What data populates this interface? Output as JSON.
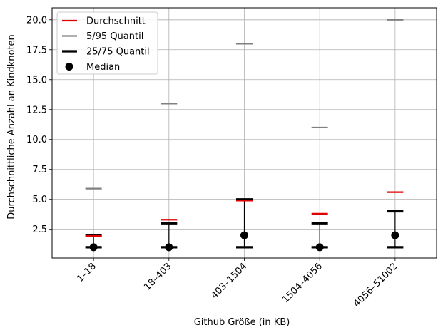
{
  "chart_data": {
    "type": "boxplot-summary",
    "xlabel": "Github Größe (in KB)",
    "ylabel": "Durchschnittliche Anzahl an Kindknoten",
    "ylim": [
      0.1,
      21.0
    ],
    "yticks": [
      2.5,
      5.0,
      7.5,
      10.0,
      12.5,
      15.0,
      17.5,
      20.0
    ],
    "ytick_labels": [
      "2.5",
      "5.0",
      "7.5",
      "10.0",
      "12.5",
      "15.0",
      "17.5",
      "20.0"
    ],
    "grid": true,
    "legend_position": "top-left",
    "categories": [
      "1–18",
      "18–403",
      "403–1504",
      "1504–4056",
      "4056–51002"
    ],
    "series": [
      {
        "name": "Durchschnitt",
        "color": "#e00000",
        "values": [
          1.95,
          3.3,
          4.9,
          3.8,
          5.6
        ]
      },
      {
        "name": "5/95 Quantil",
        "color": "#808080",
        "low": [
          1.0,
          1.0,
          1.0,
          1.0,
          1.0
        ],
        "high": [
          5.9,
          13.0,
          18.0,
          11.0,
          20.0
        ]
      },
      {
        "name": "25/75 Quantil",
        "color": "#000000",
        "low": [
          1.0,
          1.0,
          1.0,
          1.0,
          1.0
        ],
        "high": [
          2.0,
          3.0,
          5.0,
          3.0,
          4.0
        ]
      },
      {
        "name": "Median",
        "color": "#000000",
        "values": [
          1.0,
          1.0,
          2.0,
          1.0,
          2.0
        ]
      }
    ]
  }
}
